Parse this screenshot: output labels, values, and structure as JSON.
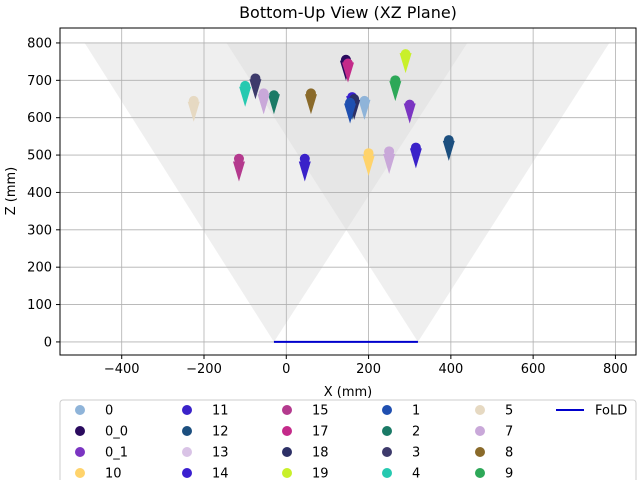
{
  "chart_data": {
    "type": "scatter",
    "title": "Bottom-Up View (XZ Plane)",
    "xlabel": "X (mm)",
    "ylabel": "Z (mm)",
    "xlim": [
      -550,
      850
    ],
    "ylim": [
      -35,
      840
    ],
    "x_ticks": [
      -400,
      -200,
      0,
      200,
      400,
      600,
      800
    ],
    "y_ticks": [
      0,
      100,
      200,
      300,
      400,
      500,
      600,
      700,
      800
    ],
    "grid": true,
    "legend_position": "bottom",
    "fov_regions": [
      {
        "apex": [
          -30,
          0
        ],
        "top_left": [
          -490,
          800
        ],
        "top_right": [
          440,
          800
        ],
        "color": "#d9d9d9"
      },
      {
        "apex": [
          320,
          0
        ],
        "top_left": [
          -145,
          800
        ],
        "top_right": [
          785,
          800
        ],
        "color": "#d9d9d9"
      }
    ],
    "fold_line": {
      "name": "FoLD",
      "x": [
        -30,
        320
      ],
      "z": [
        0,
        0
      ],
      "color": "#0000cc"
    },
    "series": [
      {
        "name": "0",
        "color": "#8fb4d9",
        "points": [
          {
            "x": 190,
            "z": 645,
            "dz": -40
          }
        ]
      },
      {
        "name": "0_0",
        "color": "#2a0a5e",
        "points": [
          {
            "x": 145,
            "z": 755,
            "dz": -45
          }
        ]
      },
      {
        "name": "0_1",
        "color": "#7b35c2",
        "points": [
          {
            "x": 300,
            "z": 635,
            "dz": -40
          }
        ]
      },
      {
        "name": "10",
        "color": "#ffd36b",
        "points": [
          {
            "x": 200,
            "z": 505,
            "dz": -50
          }
        ]
      },
      {
        "name": "11",
        "color": "#3a22c9",
        "points": [
          {
            "x": 45,
            "z": 490,
            "dz": -50
          },
          {
            "x": 315,
            "z": 520,
            "dz": -45
          }
        ]
      },
      {
        "name": "12",
        "color": "#1c4f7f",
        "points": [
          {
            "x": 395,
            "z": 540,
            "dz": -45
          },
          {
            "x": 160,
            "z": 650,
            "dz": -45
          }
        ]
      },
      {
        "name": "13",
        "color": "#d9c3e6",
        "points": [
          {
            "x": -55,
            "z": 665,
            "dz": -45
          }
        ]
      },
      {
        "name": "14",
        "color": "#3a1fd0",
        "points": [
          {
            "x": 160,
            "z": 655,
            "dz": -40
          }
        ]
      },
      {
        "name": "15",
        "color": "#b43a8e",
        "points": [
          {
            "x": -115,
            "z": 490,
            "dz": -50
          }
        ]
      },
      {
        "name": "17",
        "color": "#c42a8a",
        "points": [
          {
            "x": 150,
            "z": 745,
            "dz": -40
          }
        ]
      },
      {
        "name": "18",
        "color": "#2d3066",
        "points": [
          {
            "x": 165,
            "z": 650,
            "dz": -45
          }
        ]
      },
      {
        "name": "19",
        "color": "#c9f02a",
        "points": [
          {
            "x": 290,
            "z": 770,
            "dz": -40
          }
        ]
      },
      {
        "name": "1",
        "color": "#1f4fb0",
        "points": [
          {
            "x": 155,
            "z": 640,
            "dz": -45
          }
        ]
      },
      {
        "name": "2",
        "color": "#1a7a66",
        "points": [
          {
            "x": -30,
            "z": 660,
            "dz": -40
          }
        ]
      },
      {
        "name": "3",
        "color": "#3d3a6b",
        "points": [
          {
            "x": -75,
            "z": 705,
            "dz": -45
          }
        ]
      },
      {
        "name": "4",
        "color": "#26c9b0",
        "points": [
          {
            "x": -100,
            "z": 685,
            "dz": -45
          }
        ]
      },
      {
        "name": "5",
        "color": "#e6d9c2",
        "points": [
          {
            "x": -225,
            "z": 645,
            "dz": -45
          }
        ]
      },
      {
        "name": "7",
        "color": "#c9a8d9",
        "points": [
          {
            "x": 250,
            "z": 510,
            "dz": -50
          },
          {
            "x": -55,
            "z": 665,
            "dz": -45
          }
        ]
      },
      {
        "name": "8",
        "color": "#8a6a2a",
        "points": [
          {
            "x": 60,
            "z": 665,
            "dz": -45
          }
        ]
      },
      {
        "name": "9",
        "color": "#2da858",
        "points": [
          {
            "x": 265,
            "z": 700,
            "dz": -45
          }
        ]
      }
    ]
  }
}
